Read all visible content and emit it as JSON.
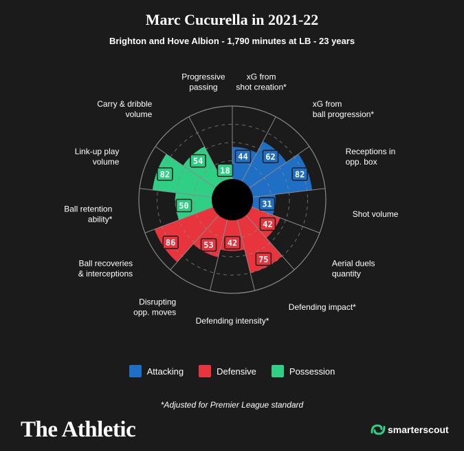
{
  "header": {
    "title": "Marc Cucurella in 2021-22",
    "subtitle": "Brighton and Hove Albion - 1,790 minutes at LB - 23 years"
  },
  "colors": {
    "attacking": "#1f6fc5",
    "defensive": "#e8343d",
    "possession": "#2fcf86",
    "background": "#1b1b1b",
    "grid": "#8a8a8a"
  },
  "chart_data": {
    "type": "polar-bar",
    "rmax": 100,
    "gridlines": [
      25,
      50,
      75,
      100
    ],
    "categories": [
      {
        "label": [
          "xG from",
          "shot creation*"
        ],
        "value": 44,
        "group": "attacking"
      },
      {
        "label": [
          "xG from",
          "ball progression*"
        ],
        "value": 62,
        "group": "attacking"
      },
      {
        "label": [
          "Receptions in",
          "opp. box"
        ],
        "value": 82,
        "group": "attacking"
      },
      {
        "label": [
          "Shot volume"
        ],
        "value": 31,
        "group": "attacking"
      },
      {
        "label": [
          "Aerial duels",
          "quantity"
        ],
        "value": 42,
        "group": "defensive"
      },
      {
        "label": [
          "Defending impact*"
        ],
        "value": 75,
        "group": "defensive"
      },
      {
        "label": [
          "Defending intensity*"
        ],
        "value": 42,
        "group": "defensive"
      },
      {
        "label": [
          "Disrupting",
          "opp. moves"
        ],
        "value": 53,
        "group": "defensive"
      },
      {
        "label": [
          "Ball recoveries",
          "& interceptions"
        ],
        "value": 86,
        "group": "defensive"
      },
      {
        "label": [
          "Ball retention",
          "ability*"
        ],
        "value": 50,
        "group": "possession"
      },
      {
        "label": [
          "Link-up play",
          "volume"
        ],
        "value": 82,
        "group": "possession"
      },
      {
        "label": [
          "Carry & dribble",
          "volume"
        ],
        "value": 54,
        "group": "possession"
      },
      {
        "label": [
          "Progressive",
          "passing"
        ],
        "value": 18,
        "group": "possession"
      }
    ]
  },
  "legend": [
    {
      "label": "Attacking",
      "color": "#1f6fc5"
    },
    {
      "label": "Defensive",
      "color": "#e8343d"
    },
    {
      "label": "Possession",
      "color": "#2fcf86"
    }
  ],
  "footnote": "*Adjusted for Premier League standard",
  "branding": {
    "publisher": "The Athletic",
    "partner": "smarterscout"
  }
}
